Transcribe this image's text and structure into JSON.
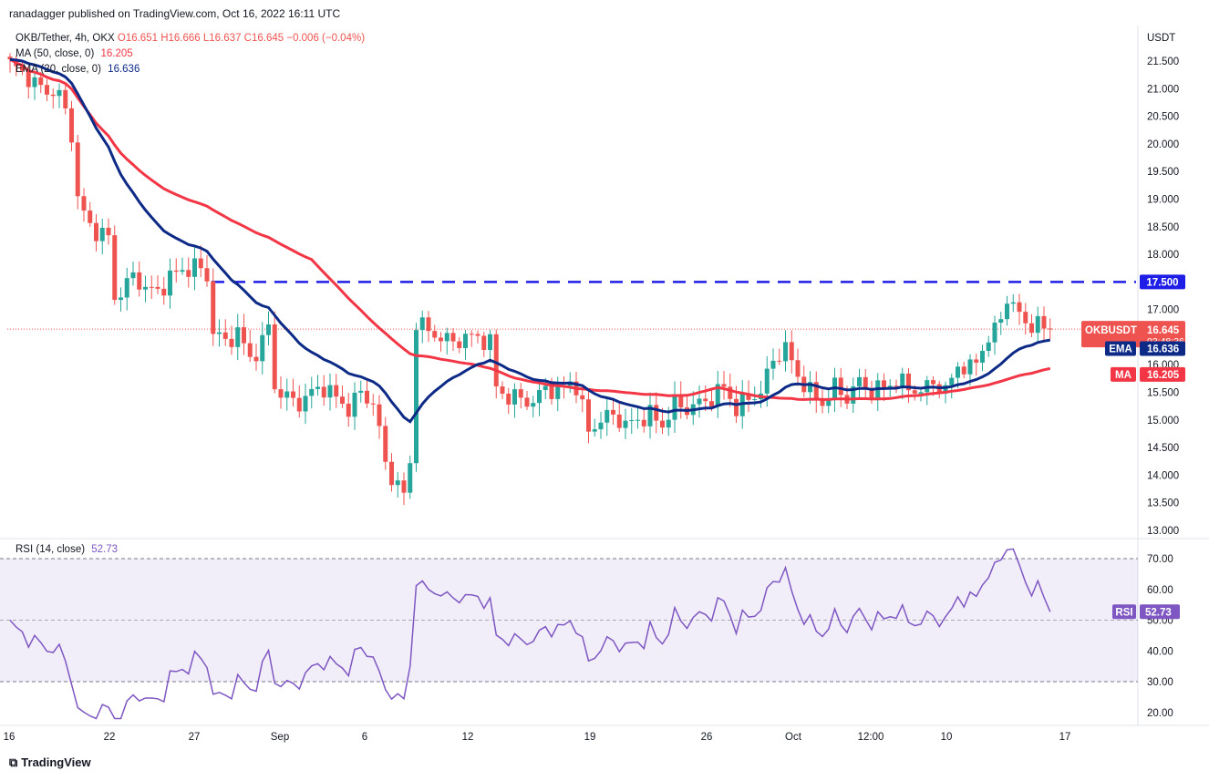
{
  "header": {
    "publisher_line": "ranadagger published on TradingView.com, Oct 16, 2022 16:11 UTC"
  },
  "symbol_legend": {
    "symbol": "OKB/Tether, 4h, OKX",
    "open": "O16.651",
    "high": "H16.666",
    "low": "L16.637",
    "close": "C16.645",
    "change": "−0.006 (−0.04%)"
  },
  "indicators": {
    "ma": {
      "label": "MA (50, close, 0)",
      "value": "16.205",
      "tag": "MA",
      "color": "#f23645"
    },
    "ema": {
      "label": "EMA (20, close, 0)",
      "value": "16.636",
      "tag": "EMA",
      "color": "#0d2a87"
    },
    "rsi": {
      "label": "RSI (14, close)",
      "value": "52.73",
      "tag": "RSI",
      "color": "#7e57c2"
    }
  },
  "price_badge": {
    "symbol": "OKBUSDT",
    "price": "16.645",
    "countdown": "03:48:36"
  },
  "level_badge": "17.500",
  "branding": "TradingView",
  "colors": {
    "up": "#26a69a",
    "down": "#ef5350",
    "level_line": "#1e1ee6"
  },
  "chart_data": {
    "type": "candlestick",
    "title": "OKB/Tether, 4h, OKX",
    "price_axis_unit": "USDT",
    "price_axis_ticks": [
      "21.500",
      "21.000",
      "20.500",
      "20.000",
      "19.500",
      "19.000",
      "18.500",
      "18.000",
      "17.500",
      "17.000",
      "16.500",
      "16.000",
      "15.500",
      "15.000",
      "14.500",
      "14.000",
      "13.500",
      "13.000"
    ],
    "price_range": [
      13.0,
      21.5
    ],
    "horizontal_level": 17.5,
    "last_close": 16.645,
    "time_axis_labels": [
      "16",
      "22",
      "27",
      "Sep",
      "6",
      "12",
      "19",
      "26",
      "Oct",
      "12:00",
      "10",
      "17"
    ],
    "close_path": [
      [
        0,
        21.45
      ],
      [
        3,
        21.2
      ],
      [
        5,
        21.0
      ],
      [
        8,
        20.9
      ],
      [
        10,
        20.2
      ],
      [
        11,
        19.0
      ],
      [
        13,
        18.5
      ],
      [
        16,
        18.3
      ],
      [
        17,
        17.2
      ],
      [
        20,
        17.6
      ],
      [
        22,
        17.4
      ],
      [
        24,
        17.3
      ],
      [
        26,
        17.6
      ],
      [
        28,
        17.7
      ],
      [
        30,
        17.8
      ],
      [
        32,
        17.6
      ],
      [
        33,
        16.6
      ],
      [
        35,
        16.4
      ],
      [
        37,
        16.6
      ],
      [
        39,
        16.1
      ],
      [
        41,
        16.4
      ],
      [
        42,
        16.7
      ],
      [
        43,
        15.6
      ],
      [
        45,
        15.4
      ],
      [
        47,
        15.3
      ],
      [
        49,
        15.5
      ],
      [
        51,
        15.6
      ],
      [
        53,
        15.4
      ],
      [
        55,
        15.2
      ],
      [
        57,
        15.5
      ],
      [
        59,
        15.3
      ],
      [
        60,
        14.8
      ],
      [
        61,
        14.2
      ],
      [
        62,
        14.0
      ],
      [
        63,
        13.8
      ],
      [
        64,
        13.65
      ],
      [
        65,
        14.2
      ],
      [
        66,
        16.8
      ],
      [
        68,
        16.6
      ],
      [
        70,
        16.5
      ],
      [
        72,
        16.4
      ],
      [
        74,
        16.5
      ],
      [
        76,
        16.5
      ],
      [
        78,
        16.4
      ],
      [
        79,
        15.6
      ],
      [
        81,
        15.4
      ],
      [
        83,
        15.4
      ],
      [
        85,
        15.3
      ],
      [
        87,
        15.6
      ],
      [
        89,
        15.5
      ],
      [
        91,
        15.7
      ],
      [
        92,
        15.6
      ],
      [
        94,
        14.8
      ],
      [
        96,
        15.0
      ],
      [
        98,
        15.1
      ],
      [
        100,
        14.9
      ],
      [
        102,
        15.0
      ],
      [
        104,
        15.1
      ],
      [
        106,
        14.9
      ],
      [
        108,
        15.3
      ],
      [
        110,
        15.2
      ],
      [
        112,
        15.3
      ],
      [
        114,
        15.4
      ],
      [
        116,
        15.6
      ],
      [
        118,
        15.2
      ],
      [
        120,
        15.4
      ],
      [
        122,
        15.5
      ],
      [
        124,
        16.1
      ],
      [
        126,
        16.3
      ],
      [
        128,
        15.8
      ],
      [
        130,
        15.5
      ],
      [
        132,
        15.3
      ],
      [
        134,
        15.6
      ],
      [
        136,
        15.4
      ],
      [
        138,
        15.7
      ],
      [
        140,
        15.5
      ],
      [
        142,
        15.6
      ],
      [
        144,
        15.7
      ],
      [
        146,
        15.6
      ],
      [
        148,
        15.5
      ],
      [
        150,
        15.7
      ],
      [
        152,
        15.5
      ],
      [
        154,
        16.0
      ],
      [
        156,
        15.9
      ],
      [
        158,
        16.3
      ],
      [
        160,
        16.6
      ],
      [
        162,
        17.2
      ],
      [
        164,
        16.9
      ],
      [
        166,
        16.7
      ],
      [
        168,
        16.7
      ],
      [
        169,
        16.645
      ]
    ],
    "series": [
      {
        "name": "OKBUSDT",
        "role": "price"
      },
      {
        "name": "MA (50, close, 0)",
        "last": 16.205
      },
      {
        "name": "EMA (20, close, 0)",
        "last": 16.636
      }
    ],
    "rsi": {
      "title": "RSI (14, close)",
      "last": 52.73,
      "ticks": [
        "70.00",
        "60.00",
        "50.00",
        "40.00",
        "30.00",
        "20.00"
      ],
      "range": [
        16,
        76
      ],
      "band": [
        30,
        70
      ]
    }
  }
}
